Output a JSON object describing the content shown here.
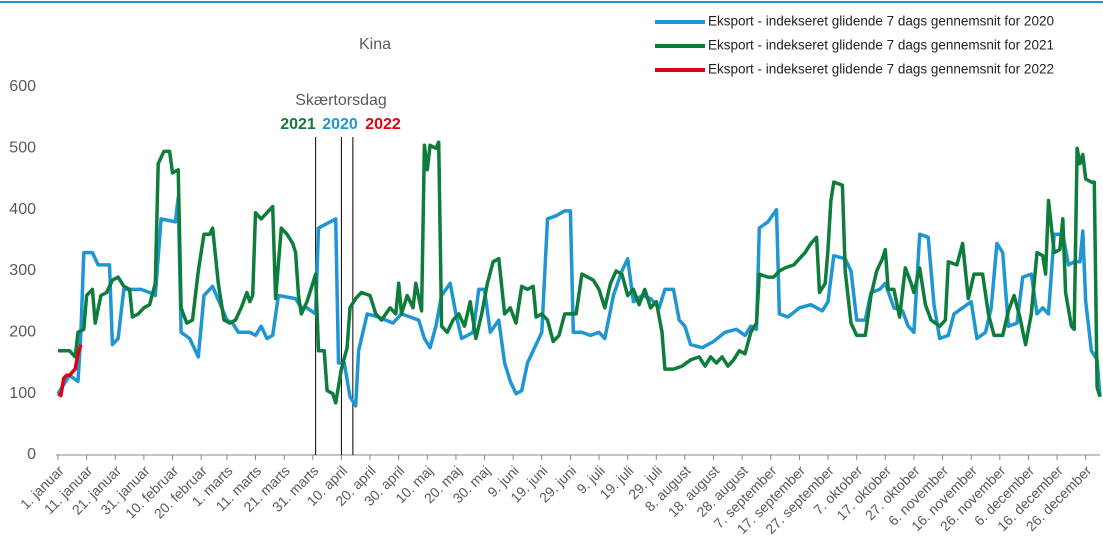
{
  "chart_data": {
    "type": "line",
    "title": "Kina",
    "xlim": [
      1,
      365
    ],
    "xticks": [
      {
        "value": 1,
        "label": "1. januar"
      },
      {
        "value": 11,
        "label": "11. januar"
      },
      {
        "value": 21,
        "label": "21. januar"
      },
      {
        "value": 31,
        "label": "31. januar"
      },
      {
        "value": 41,
        "label": "10. februar"
      },
      {
        "value": 51,
        "label": "20. februar"
      },
      {
        "value": 60,
        "label": "1. marts"
      },
      {
        "value": 70,
        "label": "11. marts"
      },
      {
        "value": 80,
        "label": "21. marts"
      },
      {
        "value": 90,
        "label": "31. marts"
      },
      {
        "value": 100,
        "label": "10. april"
      },
      {
        "value": 110,
        "label": "20. april"
      },
      {
        "value": 120,
        "label": "30. april"
      },
      {
        "value": 130,
        "label": "10. maj"
      },
      {
        "value": 140,
        "label": "20. maj"
      },
      {
        "value": 150,
        "label": "30. maj"
      },
      {
        "value": 160,
        "label": "9. juni"
      },
      {
        "value": 170,
        "label": "19. juni"
      },
      {
        "value": 180,
        "label": "29. juni"
      },
      {
        "value": 190,
        "label": "9. juli"
      },
      {
        "value": 200,
        "label": "19. juli"
      },
      {
        "value": 210,
        "label": "29. juli"
      },
      {
        "value": 220,
        "label": "8. august"
      },
      {
        "value": 230,
        "label": "18. august"
      },
      {
        "value": 240,
        "label": "28. august"
      },
      {
        "value": 250,
        "label": "7. september"
      },
      {
        "value": 260,
        "label": "17. september"
      },
      {
        "value": 270,
        "label": "27. september"
      },
      {
        "value": 280,
        "label": "7. oktober"
      },
      {
        "value": 290,
        "label": "17. oktober"
      },
      {
        "value": 300,
        "label": "27. oktober"
      },
      {
        "value": 310,
        "label": "6. november"
      },
      {
        "value": 320,
        "label": "16. november"
      },
      {
        "value": 330,
        "label": "26. november"
      },
      {
        "value": 340,
        "label": "6. december"
      },
      {
        "value": 350,
        "label": "16. december"
      },
      {
        "value": 360,
        "label": "26. december"
      }
    ],
    "ylim": [
      0,
      600
    ],
    "yticks": [
      0,
      100,
      200,
      300,
      400,
      500,
      600
    ],
    "grid": false,
    "legend": "top-right",
    "annotation": {
      "text": "Skærtorsdag",
      "markers": [
        {
          "label": "2021",
          "x": 91,
          "color": "#0e7c3a"
        },
        {
          "label": "2020",
          "x": 100,
          "color": "#1f96d3"
        },
        {
          "label": "2022",
          "x": 104,
          "color": "#e0000f"
        }
      ]
    },
    "series": [
      {
        "name": "Eksport - indekseret glidende 7 dags gennemsnit for 2020",
        "color": "#1f96d3",
        "x": [
          1,
          5,
          8,
          9,
          10,
          13,
          15,
          19,
          20,
          22,
          24,
          30,
          33,
          35,
          37,
          42,
          43,
          44,
          47,
          50,
          52,
          55,
          60,
          62,
          64,
          68,
          70,
          72,
          74,
          76,
          78,
          84,
          86,
          88,
          91,
          92,
          96,
          98,
          99,
          101,
          103,
          105,
          106,
          109,
          113,
          118,
          121,
          124,
          127,
          129,
          131,
          133,
          135,
          138,
          140,
          142,
          146,
          148,
          150,
          152,
          155,
          157,
          159,
          161,
          163,
          165,
          167,
          170,
          172,
          175,
          178,
          180,
          181,
          184,
          187,
          190,
          192,
          195,
          198,
          200,
          202,
          205,
          208,
          211,
          213,
          216,
          218,
          220,
          222,
          226,
          230,
          234,
          238,
          241,
          243,
          245,
          246,
          249,
          252,
          253,
          256,
          260,
          264,
          268,
          270,
          272,
          276,
          278,
          280,
          283,
          285,
          288,
          290,
          293,
          296,
          298,
          300,
          302,
          305,
          307,
          309,
          312,
          314,
          317,
          320,
          322,
          325,
          327,
          329,
          331,
          333,
          336,
          338,
          341,
          343,
          345,
          347,
          349,
          352,
          354,
          356,
          358,
          359,
          360,
          362,
          364,
          365
        ],
        "values": [
          100,
          130,
          120,
          200,
          330,
          330,
          310,
          310,
          180,
          190,
          270,
          270,
          265,
          260,
          385,
          380,
          420,
          200,
          190,
          160,
          260,
          275,
          220,
          215,
          200,
          200,
          195,
          210,
          190,
          195,
          260,
          255,
          240,
          240,
          230,
          370,
          380,
          385,
          150,
          150,
          95,
          80,
          170,
          230,
          225,
          215,
          230,
          225,
          220,
          190,
          175,
          210,
          260,
          280,
          230,
          190,
          200,
          270,
          270,
          200,
          220,
          150,
          120,
          100,
          105,
          150,
          170,
          200,
          385,
          390,
          398,
          398,
          200,
          200,
          195,
          200,
          190,
          260,
          300,
          320,
          250,
          260,
          255,
          240,
          270,
          270,
          220,
          210,
          180,
          175,
          185,
          200,
          205,
          195,
          210,
          205,
          370,
          380,
          400,
          230,
          225,
          240,
          245,
          235,
          250,
          325,
          320,
          300,
          220,
          220,
          265,
          270,
          280,
          240,
          235,
          210,
          200,
          360,
          355,
          245,
          190,
          195,
          230,
          240,
          250,
          190,
          200,
          240,
          345,
          330,
          210,
          215,
          290,
          295,
          230,
          240,
          230,
          360,
          360,
          310,
          315,
          315,
          365,
          250,
          170,
          155,
          95
        ]
      },
      {
        "name": "Eksport - indekseret glidende 7 dags gennemsnit for 2021",
        "color": "#0e7c3a",
        "x": [
          1,
          5,
          7,
          8,
          10,
          11,
          13,
          14,
          16,
          18,
          20,
          22,
          24,
          26,
          27,
          29,
          31,
          33,
          35,
          36,
          38,
          40,
          41,
          43,
          44,
          46,
          48,
          50,
          52,
          54,
          55,
          57,
          59,
          61,
          63,
          65,
          67,
          68,
          69,
          70,
          72,
          74,
          76,
          77,
          79,
          81,
          83,
          84,
          85,
          86,
          88,
          90,
          91,
          92,
          94,
          95,
          97,
          98,
          100,
          102,
          103,
          105,
          107,
          110,
          112,
          114,
          117,
          119,
          120,
          121,
          123,
          125,
          126,
          128,
          129,
          130,
          131,
          133,
          134,
          135,
          137,
          139,
          141,
          143,
          145,
          147,
          149,
          151,
          153,
          155,
          157,
          159,
          161,
          163,
          165,
          167,
          168,
          170,
          172,
          174,
          176,
          178,
          180,
          182,
          184,
          186,
          188,
          190,
          192,
          194,
          196,
          198,
          200,
          202,
          204,
          206,
          208,
          210,
          212,
          213,
          216,
          219,
          222,
          225,
          227,
          229,
          231,
          233,
          235,
          237,
          239,
          241,
          243,
          245,
          246,
          249,
          251,
          253,
          255,
          258,
          260,
          262,
          264,
          266,
          267,
          269,
          270,
          271,
          272,
          275,
          276,
          278,
          280,
          283,
          285,
          287,
          289,
          290,
          291,
          293,
          295,
          297,
          299,
          300,
          302,
          304,
          306,
          309,
          311,
          312,
          315,
          317,
          319,
          321,
          324,
          326,
          328,
          331,
          333,
          335,
          337,
          339,
          341,
          343,
          345,
          346,
          347,
          349,
          351,
          352,
          353,
          355,
          356,
          357,
          358,
          359,
          360,
          362,
          363,
          364,
          365
        ],
        "values": [
          170,
          170,
          160,
          200,
          205,
          260,
          270,
          215,
          260,
          265,
          285,
          290,
          275,
          270,
          225,
          230,
          240,
          245,
          280,
          475,
          495,
          495,
          460,
          465,
          240,
          215,
          220,
          300,
          360,
          360,
          370,
          280,
          220,
          215,
          220,
          240,
          265,
          250,
          260,
          395,
          385,
          395,
          405,
          255,
          370,
          360,
          345,
          330,
          260,
          230,
          250,
          280,
          295,
          170,
          170,
          105,
          100,
          85,
          140,
          175,
          240,
          255,
          265,
          260,
          230,
          220,
          240,
          230,
          280,
          230,
          260,
          240,
          280,
          235,
          505,
          465,
          505,
          500,
          510,
          210,
          200,
          220,
          230,
          210,
          250,
          190,
          230,
          280,
          315,
          320,
          230,
          240,
          215,
          275,
          270,
          275,
          225,
          230,
          220,
          185,
          195,
          230,
          230,
          230,
          295,
          290,
          285,
          270,
          240,
          280,
          300,
          295,
          260,
          270,
          245,
          270,
          240,
          250,
          200,
          140,
          140,
          145,
          155,
          160,
          145,
          160,
          150,
          160,
          145,
          155,
          170,
          165,
          200,
          215,
          295,
          290,
          290,
          300,
          305,
          310,
          320,
          330,
          345,
          355,
          265,
          280,
          335,
          415,
          445,
          440,
          300,
          215,
          195,
          195,
          260,
          300,
          320,
          335,
          270,
          270,
          225,
          305,
          280,
          265,
          305,
          245,
          220,
          210,
          220,
          315,
          310,
          345,
          255,
          295,
          295,
          230,
          195,
          195,
          235,
          260,
          225,
          180,
          230,
          330,
          325,
          295,
          415,
          330,
          335,
          385,
          265,
          210,
          205,
          500,
          475,
          490,
          450,
          445,
          445,
          110,
          95
        ]
      },
      {
        "name": "Eksport - indekseret glidende 7 dags gennemsnit for 2022",
        "color": "#e0000f",
        "x": [
          1,
          2,
          3,
          4,
          5,
          6,
          7,
          8,
          9
        ],
        "values": [
          100,
          97,
          125,
          130,
          130,
          135,
          140,
          165,
          180
        ]
      }
    ]
  }
}
